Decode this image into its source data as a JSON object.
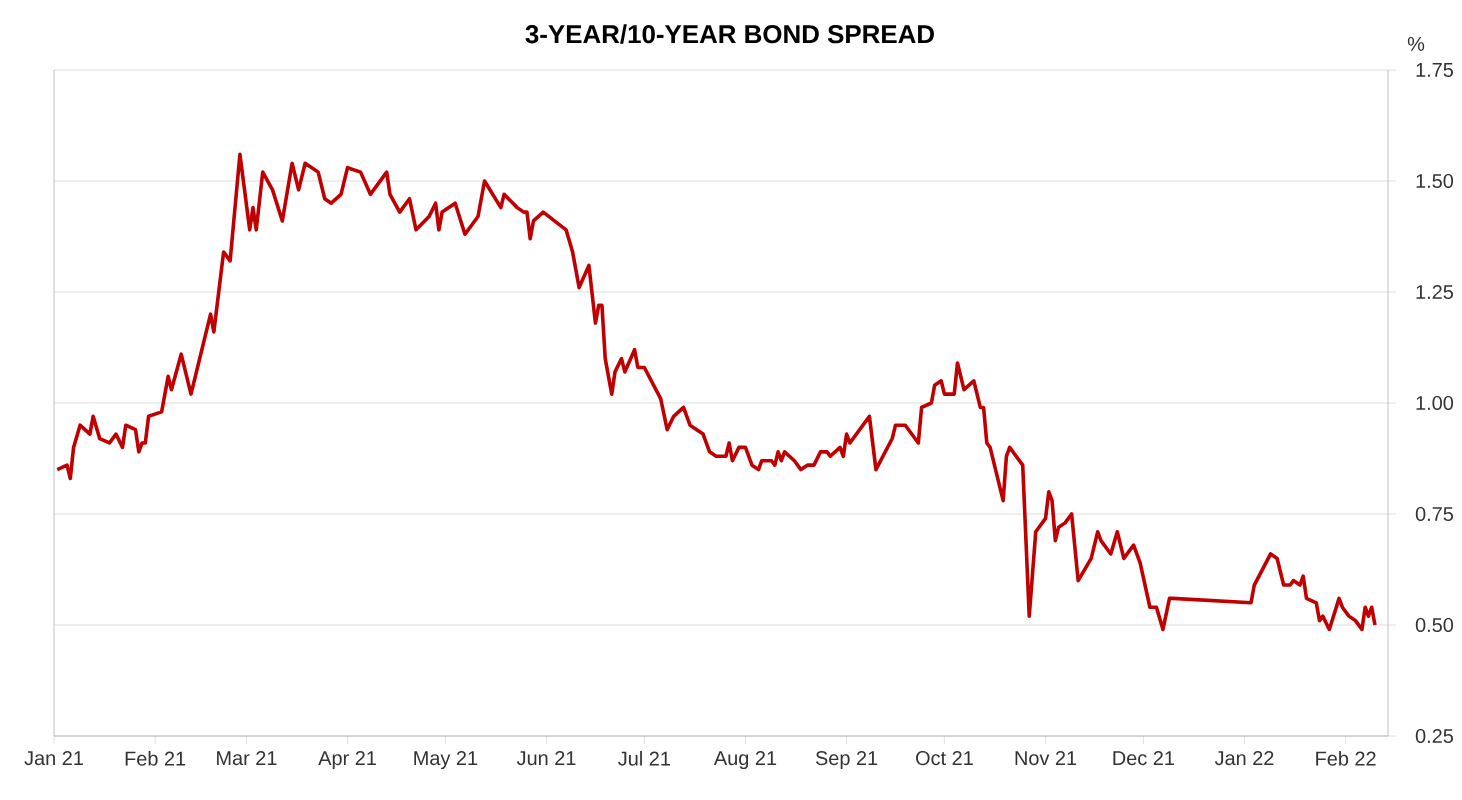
{
  "chart_data": {
    "type": "line",
    "title": "3-YEAR/10-YEAR BOND SPREAD",
    "ylabel": "%",
    "xlim": [
      "2021-01-01",
      "2022-02-14"
    ],
    "xticks": [
      {
        "value": "2021-01-01",
        "label": "Jan 21"
      },
      {
        "value": "2021-02-01",
        "label": "Feb 21"
      },
      {
        "value": "2021-03-01",
        "label": "Mar 21"
      },
      {
        "value": "2021-04-01",
        "label": "Apr 21"
      },
      {
        "value": "2021-05-01",
        "label": "May 21"
      },
      {
        "value": "2021-06-01",
        "label": "Jun 21"
      },
      {
        "value": "2021-07-01",
        "label": "Jul 21"
      },
      {
        "value": "2021-08-01",
        "label": "Aug 21"
      },
      {
        "value": "2021-09-01",
        "label": "Sep 21"
      },
      {
        "value": "2021-10-01",
        "label": "Oct 21"
      },
      {
        "value": "2021-11-01",
        "label": "Nov 21"
      },
      {
        "value": "2021-12-01",
        "label": "Dec 21"
      },
      {
        "value": "2022-01-01",
        "label": "Jan 22"
      },
      {
        "value": "2022-02-01",
        "label": "Feb 22"
      }
    ],
    "ylim": [
      0.25,
      1.75
    ],
    "yticks": [
      0.25,
      {
        "value": 0.5,
        "label": "0.50"
      },
      0.75,
      {
        "value": 1.0,
        "label": "1.00"
      },
      1.25,
      {
        "value": 1.5,
        "label": "1.50"
      },
      1.75
    ],
    "grid": "y",
    "legend": false,
    "marker": "none",
    "line_style": "solid",
    "x": [
      "2021-01-02",
      "2021-01-05",
      "2021-01-06",
      "2021-01-07",
      "2021-01-09",
      "2021-01-12",
      "2021-01-13",
      "2021-01-15",
      "2021-01-18",
      "2021-01-20",
      "2021-01-22",
      "2021-01-23",
      "2021-01-26",
      "2021-01-27",
      "2021-01-28",
      "2021-01-29",
      "2021-01-30",
      "2021-02-03",
      "2021-02-05",
      "2021-02-06",
      "2021-02-09",
      "2021-02-12",
      "2021-02-16",
      "2021-02-18",
      "2021-02-19",
      "2021-02-22",
      "2021-02-24",
      "2021-02-25",
      "2021-02-27",
      "2021-03-02",
      "2021-03-03",
      "2021-03-04",
      "2021-03-06",
      "2021-03-09",
      "2021-03-12",
      "2021-03-15",
      "2021-03-17",
      "2021-03-19",
      "2021-03-23",
      "2021-03-25",
      "2021-03-27",
      "2021-03-30",
      "2021-04-01",
      "2021-04-05",
      "2021-04-08",
      "2021-04-13",
      "2021-04-14",
      "2021-04-17",
      "2021-04-20",
      "2021-04-22",
      "2021-04-26",
      "2021-04-28",
      "2021-04-29",
      "2021-04-30",
      "2021-05-04",
      "2021-05-07",
      "2021-05-11",
      "2021-05-13",
      "2021-05-18",
      "2021-05-19",
      "2021-05-23",
      "2021-05-25",
      "2021-05-26",
      "2021-05-27",
      "2021-05-28",
      "2021-05-31",
      "2021-06-07",
      "2021-06-09",
      "2021-06-11",
      "2021-06-14",
      "2021-06-16",
      "2021-06-17",
      "2021-06-18",
      "2021-06-19",
      "2021-06-21",
      "2021-06-22",
      "2021-06-24",
      "2021-06-25",
      "2021-06-28",
      "2021-06-29",
      "2021-07-01",
      "2021-07-06",
      "2021-07-08",
      "2021-07-10",
      "2021-07-13",
      "2021-07-15",
      "2021-07-19",
      "2021-07-21",
      "2021-07-23",
      "2021-07-26",
      "2021-07-27",
      "2021-07-28",
      "2021-07-30",
      "2021-08-01",
      "2021-08-03",
      "2021-08-05",
      "2021-08-06",
      "2021-08-09",
      "2021-08-10",
      "2021-08-11",
      "2021-08-12",
      "2021-08-13",
      "2021-08-16",
      "2021-08-18",
      "2021-08-20",
      "2021-08-22",
      "2021-08-24",
      "2021-08-26",
      "2021-08-27",
      "2021-08-30",
      "2021-08-31",
      "2021-09-01",
      "2021-09-02",
      "2021-09-08",
      "2021-09-10",
      "2021-09-15",
      "2021-09-16",
      "2021-09-19",
      "2021-09-23",
      "2021-09-24",
      "2021-09-27",
      "2021-09-28",
      "2021-09-30",
      "2021-10-01",
      "2021-10-04",
      "2021-10-05",
      "2021-10-07",
      "2021-10-10",
      "2021-10-12",
      "2021-10-13",
      "2021-10-14",
      "2021-10-15",
      "2021-10-19",
      "2021-10-20",
      "2021-10-21",
      "2021-10-25",
      "2021-10-27",
      "2021-10-29",
      "2021-11-01",
      "2021-11-02",
      "2021-11-03",
      "2021-11-04",
      "2021-11-05",
      "2021-11-07",
      "2021-11-09",
      "2021-11-11",
      "2021-11-15",
      "2021-11-17",
      "2021-11-18",
      "2021-11-21",
      "2021-11-23",
      "2021-11-25",
      "2021-11-28",
      "2021-11-30",
      "2021-12-03",
      "2021-12-05",
      "2021-12-07",
      "2021-12-09",
      "2021-12-10",
      "2022-01-03",
      "2022-01-04",
      "2022-01-09",
      "2022-01-11",
      "2022-01-13",
      "2022-01-15",
      "2022-01-16",
      "2022-01-18",
      "2022-01-19",
      "2022-01-20",
      "2022-01-23",
      "2022-01-24",
      "2022-01-25",
      "2022-01-27",
      "2022-01-30",
      "2022-01-31",
      "2022-02-02",
      "2022-02-04",
      "2022-02-06",
      "2022-02-07",
      "2022-02-08",
      "2022-02-09",
      "2022-02-10"
    ],
    "series": [
      {
        "color": "#c00000",
        "values": [
          0.85,
          0.86,
          0.83,
          0.9,
          0.95,
          0.93,
          0.97,
          0.92,
          0.91,
          0.93,
          0.9,
          0.95,
          0.94,
          0.89,
          0.91,
          0.91,
          0.97,
          0.98,
          1.06,
          1.03,
          1.11,
          1.02,
          1.14,
          1.2,
          1.16,
          1.34,
          1.32,
          1.4,
          1.56,
          1.39,
          1.44,
          1.39,
          1.52,
          1.48,
          1.41,
          1.54,
          1.48,
          1.54,
          1.52,
          1.46,
          1.45,
          1.47,
          1.53,
          1.52,
          1.47,
          1.52,
          1.47,
          1.43,
          1.46,
          1.39,
          1.42,
          1.45,
          1.39,
          1.43,
          1.45,
          1.38,
          1.42,
          1.5,
          1.44,
          1.47,
          1.44,
          1.43,
          1.43,
          1.37,
          1.41,
          1.43,
          1.39,
          1.34,
          1.26,
          1.31,
          1.18,
          1.22,
          1.22,
          1.1,
          1.02,
          1.07,
          1.1,
          1.07,
          1.12,
          1.08,
          1.08,
          1.01,
          0.94,
          0.97,
          0.99,
          0.95,
          0.93,
          0.89,
          0.88,
          0.88,
          0.91,
          0.87,
          0.9,
          0.9,
          0.86,
          0.85,
          0.87,
          0.87,
          0.86,
          0.89,
          0.87,
          0.89,
          0.87,
          0.85,
          0.86,
          0.86,
          0.89,
          0.89,
          0.88,
          0.9,
          0.88,
          0.93,
          0.91,
          0.97,
          0.85,
          0.92,
          0.95,
          0.95,
          0.91,
          0.99,
          1.0,
          1.04,
          1.05,
          1.02,
          1.02,
          1.09,
          1.03,
          1.05,
          0.99,
          0.99,
          0.91,
          0.9,
          0.78,
          0.88,
          0.9,
          0.86,
          0.52,
          0.71,
          0.74,
          0.8,
          0.78,
          0.69,
          0.72,
          0.73,
          0.75,
          0.6,
          0.65,
          0.71,
          0.69,
          0.66,
          0.71,
          0.65,
          0.68,
          0.64,
          0.54,
          0.54,
          0.49,
          0.56,
          0.56,
          0.55,
          0.59,
          0.66,
          0.65,
          0.59,
          0.59,
          0.6,
          0.59,
          0.61,
          0.56,
          0.55,
          0.51,
          0.52,
          0.49,
          0.56,
          0.54,
          0.52,
          0.51,
          0.49,
          0.54,
          0.52,
          0.54,
          0.5
        ]
      }
    ]
  }
}
